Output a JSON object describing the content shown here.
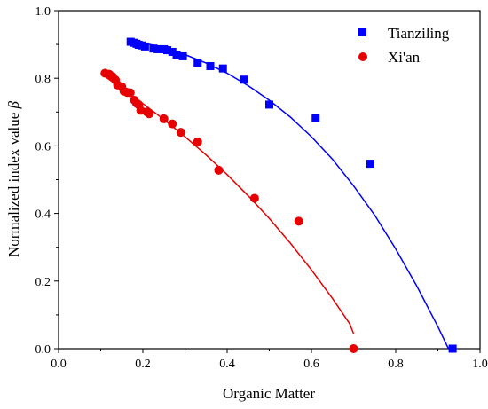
{
  "chart_data": {
    "type": "scatter",
    "xlabel": "Organic Matter",
    "ylabel": "Normalized index value ",
    "ylabel_symbol": "β",
    "xlim": [
      0.0,
      1.0
    ],
    "ylim": [
      0.0,
      1.0
    ],
    "x_ticks": [
      "0.0",
      "0.2",
      "0.4",
      "0.6",
      "0.8",
      "1.0"
    ],
    "y_ticks": [
      "0.0",
      "0.2",
      "0.4",
      "0.6",
      "0.8",
      "1.0"
    ],
    "grid": false,
    "legend_position": "top-right",
    "series": [
      {
        "name": "Tianziling",
        "marker": "square",
        "color": "#0000ff",
        "points": [
          [
            0.171,
            0.908
          ],
          [
            0.178,
            0.905
          ],
          [
            0.185,
            0.902
          ],
          [
            0.19,
            0.899
          ],
          [
            0.197,
            0.897
          ],
          [
            0.205,
            0.894
          ],
          [
            0.225,
            0.888
          ],
          [
            0.235,
            0.886
          ],
          [
            0.25,
            0.886
          ],
          [
            0.258,
            0.883
          ],
          [
            0.27,
            0.878
          ],
          [
            0.28,
            0.87
          ],
          [
            0.295,
            0.865
          ],
          [
            0.33,
            0.846
          ],
          [
            0.36,
            0.836
          ],
          [
            0.39,
            0.829
          ],
          [
            0.44,
            0.796
          ],
          [
            0.5,
            0.722
          ],
          [
            0.61,
            0.683
          ],
          [
            0.74,
            0.547
          ],
          [
            0.935,
            0.0
          ]
        ],
        "fit": [
          [
            0.165,
            0.913
          ],
          [
            0.2,
            0.905
          ],
          [
            0.25,
            0.89
          ],
          [
            0.3,
            0.87
          ],
          [
            0.35,
            0.845
          ],
          [
            0.4,
            0.815
          ],
          [
            0.45,
            0.778
          ],
          [
            0.5,
            0.735
          ],
          [
            0.55,
            0.685
          ],
          [
            0.6,
            0.627
          ],
          [
            0.65,
            0.56
          ],
          [
            0.7,
            0.482
          ],
          [
            0.75,
            0.395
          ],
          [
            0.8,
            0.295
          ],
          [
            0.85,
            0.185
          ],
          [
            0.9,
            0.065
          ],
          [
            0.925,
            0.0
          ]
        ]
      },
      {
        "name": "Xi'an",
        "marker": "circle",
        "color": "#e60000",
        "points": [
          [
            0.11,
            0.815
          ],
          [
            0.12,
            0.812
          ],
          [
            0.128,
            0.805
          ],
          [
            0.135,
            0.795
          ],
          [
            0.14,
            0.78
          ],
          [
            0.15,
            0.775
          ],
          [
            0.155,
            0.762
          ],
          [
            0.163,
            0.758
          ],
          [
            0.17,
            0.757
          ],
          [
            0.18,
            0.735
          ],
          [
            0.185,
            0.726
          ],
          [
            0.19,
            0.722
          ],
          [
            0.195,
            0.705
          ],
          [
            0.21,
            0.7
          ],
          [
            0.215,
            0.695
          ],
          [
            0.25,
            0.68
          ],
          [
            0.27,
            0.665
          ],
          [
            0.29,
            0.64
          ],
          [
            0.33,
            0.612
          ],
          [
            0.38,
            0.528
          ],
          [
            0.465,
            0.445
          ],
          [
            0.57,
            0.377
          ],
          [
            0.7,
            0.0
          ]
        ],
        "fit": [
          [
            0.11,
            0.805
          ],
          [
            0.15,
            0.77
          ],
          [
            0.2,
            0.725
          ],
          [
            0.25,
            0.678
          ],
          [
            0.3,
            0.627
          ],
          [
            0.35,
            0.573
          ],
          [
            0.4,
            0.515
          ],
          [
            0.45,
            0.452
          ],
          [
            0.5,
            0.385
          ],
          [
            0.55,
            0.312
          ],
          [
            0.6,
            0.233
          ],
          [
            0.65,
            0.148
          ],
          [
            0.69,
            0.075
          ],
          [
            0.7,
            0.045
          ]
        ]
      }
    ]
  }
}
